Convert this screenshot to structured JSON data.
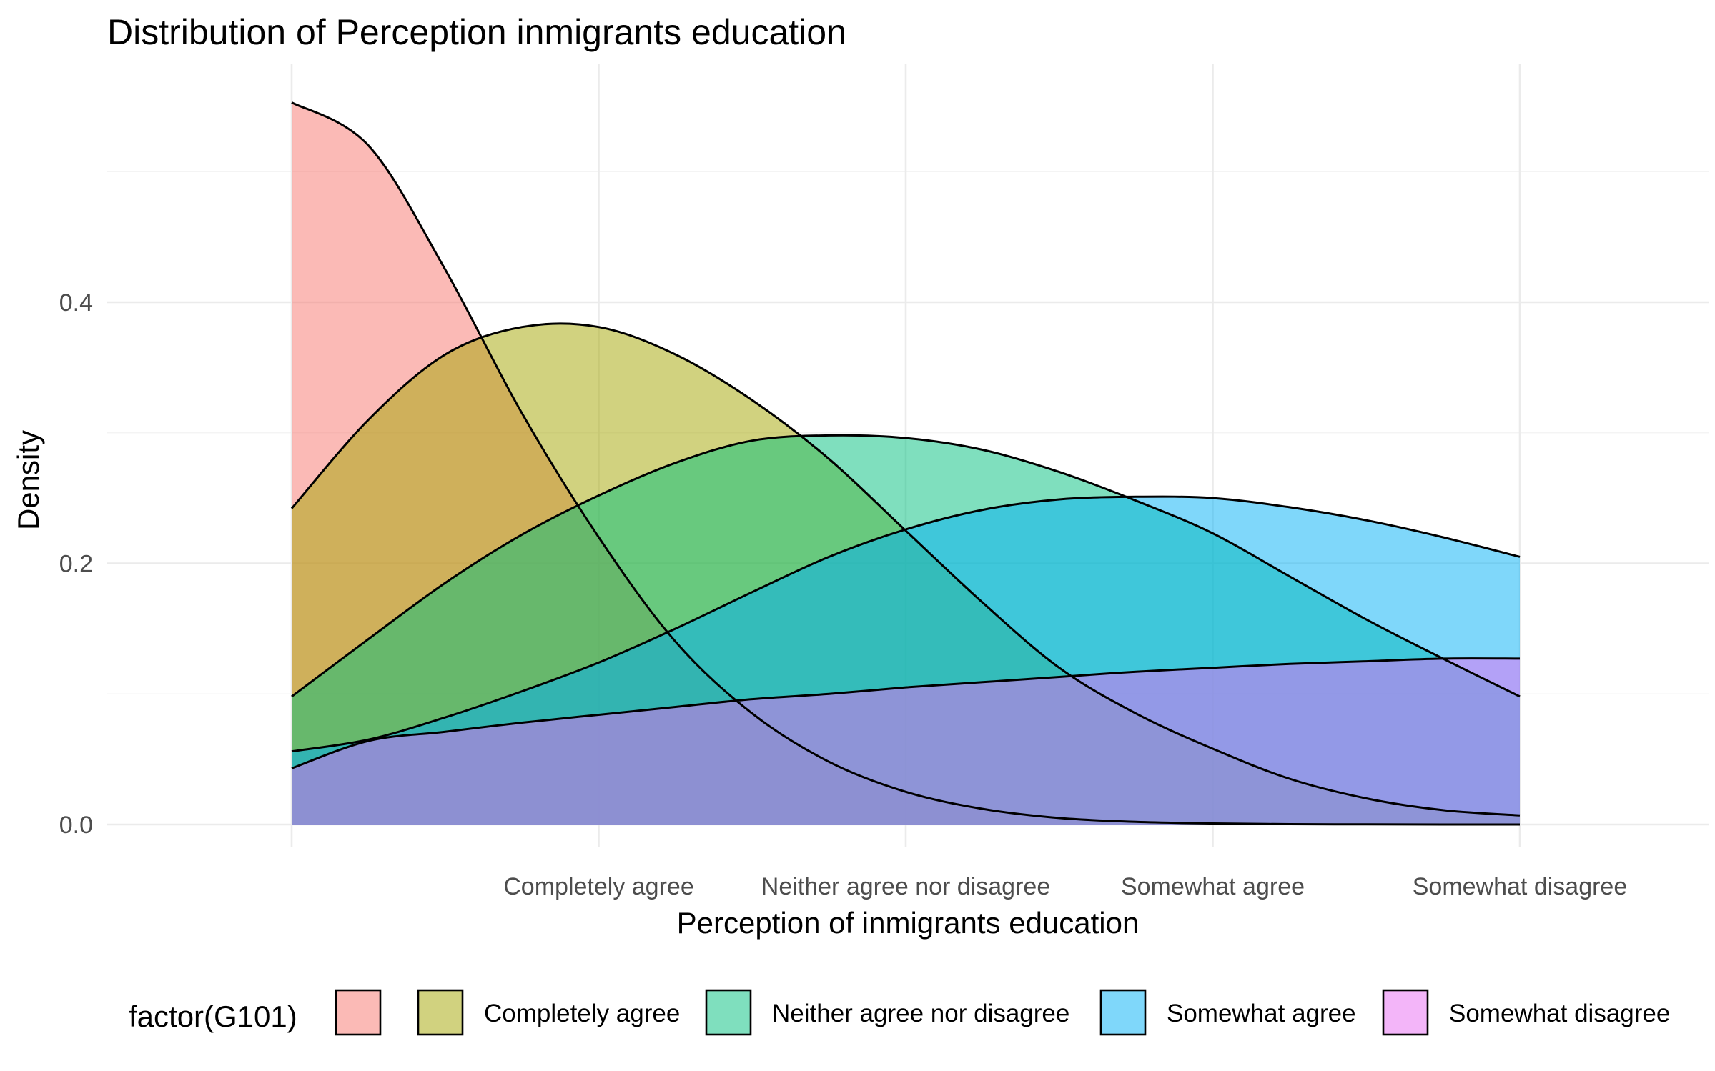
{
  "chart_data": {
    "type": "area",
    "title": "Distribution of Perception inmigrants education",
    "xlabel": "Perception of inmigrants education",
    "ylabel": "Density",
    "x_categories": [
      "",
      "Completely agree",
      "Neither agree nor disagree",
      "Somewhat agree",
      "Somewhat disagree"
    ],
    "xlim": [
      1,
      5
    ],
    "ylim": [
      0,
      0.55
    ],
    "y_ticks": [
      "0.0",
      "0.2",
      "0.4"
    ],
    "y_tick_values": [
      0,
      0.2,
      0.4
    ],
    "grid": true,
    "legend": {
      "title": "factor(G101)",
      "position": "bottom"
    },
    "series": [
      {
        "name": "",
        "color": "#F8766D",
        "x": [
          1,
          1.25,
          1.5,
          1.75,
          2,
          2.25,
          2.5,
          2.75,
          3,
          3.25,
          3.5,
          3.75,
          4,
          4.25,
          4.5,
          4.75,
          5
        ],
        "y": [
          0.553,
          0.52,
          0.425,
          0.315,
          0.22,
          0.14,
          0.085,
          0.048,
          0.025,
          0.012,
          0.005,
          0.002,
          0.0008,
          0.0003,
          0.0001,
          0,
          0
        ]
      },
      {
        "name": "Completely agree",
        "color": "#A3A500",
        "x": [
          1,
          1.25,
          1.5,
          1.75,
          2,
          2.25,
          2.5,
          2.75,
          3,
          3.25,
          3.5,
          3.75,
          4,
          4.25,
          4.5,
          4.75,
          5
        ],
        "y": [
          0.242,
          0.31,
          0.36,
          0.381,
          0.381,
          0.36,
          0.325,
          0.28,
          0.225,
          0.17,
          0.12,
          0.085,
          0.058,
          0.035,
          0.02,
          0.011,
          0.007
        ]
      },
      {
        "name": "Neither agree nor disagree",
        "color": "#00BF7D",
        "x": [
          1,
          1.25,
          1.5,
          1.75,
          2,
          2.25,
          2.5,
          2.75,
          3,
          3.25,
          3.5,
          3.75,
          4,
          4.25,
          4.5,
          4.75,
          5
        ],
        "y": [
          0.098,
          0.142,
          0.185,
          0.222,
          0.252,
          0.277,
          0.294,
          0.298,
          0.296,
          0.287,
          0.27,
          0.248,
          0.223,
          0.19,
          0.157,
          0.127,
          0.098
        ]
      },
      {
        "name": "Somewhat agree",
        "color": "#00B0F6",
        "x": [
          1,
          1.25,
          1.5,
          1.75,
          2,
          2.25,
          2.5,
          2.75,
          3,
          3.25,
          3.5,
          3.75,
          4,
          4.25,
          4.5,
          4.75,
          5
        ],
        "y": [
          0.056,
          0.065,
          0.082,
          0.102,
          0.124,
          0.15,
          0.178,
          0.205,
          0.226,
          0.241,
          0.249,
          0.251,
          0.25,
          0.243,
          0.233,
          0.22,
          0.205
        ]
      },
      {
        "name": "Somewhat disagree",
        "color": "#E76BF3",
        "x": [
          1,
          1.25,
          1.5,
          1.75,
          2,
          2.25,
          2.5,
          2.75,
          3,
          3.25,
          3.5,
          3.75,
          4,
          4.25,
          4.5,
          4.75,
          5
        ],
        "y": [
          0.043,
          0.064,
          0.071,
          0.078,
          0.084,
          0.09,
          0.096,
          0.1,
          0.105,
          0.109,
          0.113,
          0.117,
          0.12,
          0.123,
          0.125,
          0.127,
          0.127
        ]
      }
    ]
  }
}
